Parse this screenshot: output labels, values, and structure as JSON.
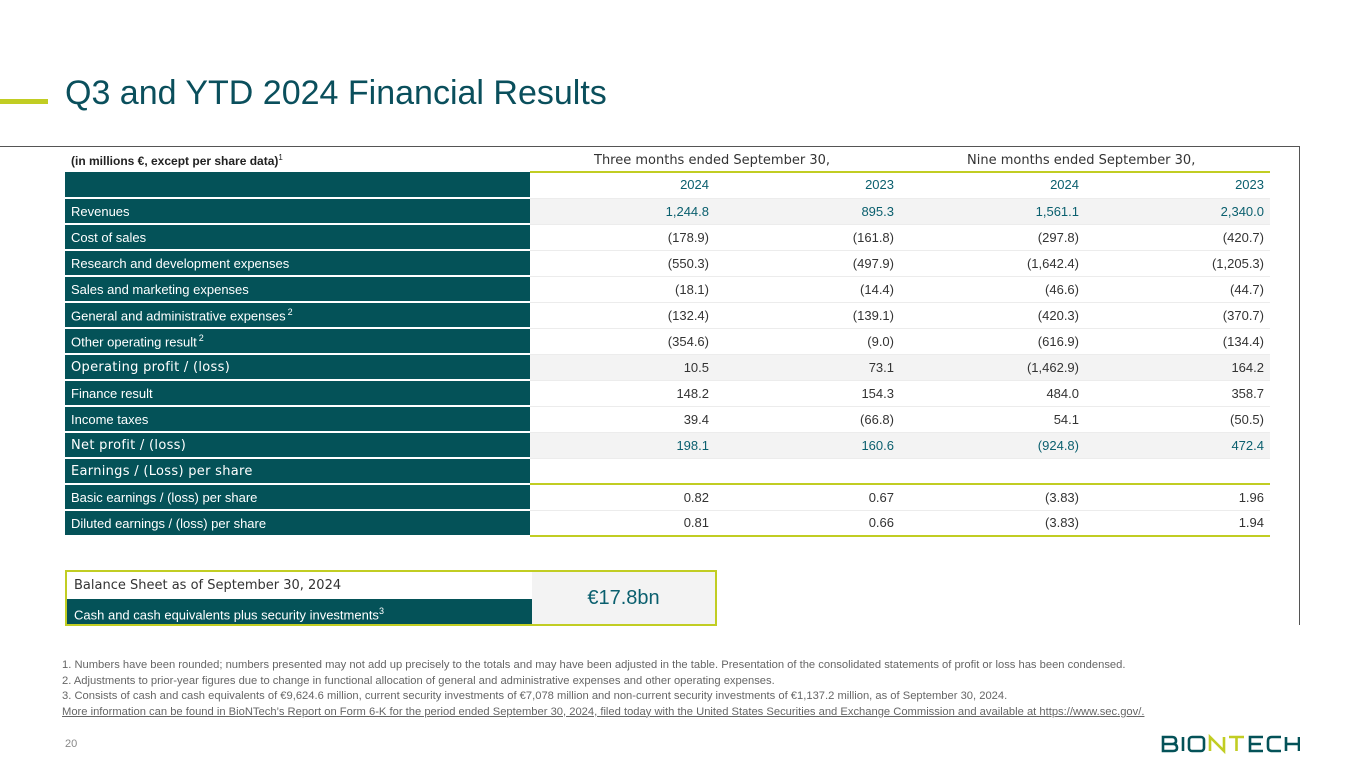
{
  "title": "Q3 and YTD 2024 Financial Results",
  "units_label": "(in millions €, except per share data)",
  "units_footnote": "1",
  "periods": {
    "three_months": "Three months ended September 30,",
    "nine_months": "Nine months ended September 30,"
  },
  "years": [
    "2024",
    "2023",
    "2024",
    "2023"
  ],
  "rows": [
    {
      "label": "Revenues",
      "sup": "",
      "values": [
        "1,244.8",
        "895.3",
        "1,561.1",
        "2,340.0"
      ]
    },
    {
      "label": "Cost of sales",
      "sup": "",
      "values": [
        "(178.9)",
        "(161.8)",
        "(297.8)",
        "(420.7)"
      ]
    },
    {
      "label": "Research and development expenses",
      "sup": "",
      "values": [
        "(550.3)",
        "(497.9)",
        "(1,642.4)",
        "(1,205.3)"
      ]
    },
    {
      "label": "Sales and marketing expenses",
      "sup": "",
      "values": [
        "(18.1)",
        "(14.4)",
        "(46.6)",
        "(44.7)"
      ]
    },
    {
      "label": "General and administrative expenses",
      "sup": "2",
      "values": [
        "(132.4)",
        "(139.1)",
        "(420.3)",
        "(370.7)"
      ]
    },
    {
      "label": "Other operating result",
      "sup": "2",
      "values": [
        "(354.6)",
        "(9.0)",
        "(616.9)",
        "(134.4)"
      ]
    },
    {
      "label": "Operating profit / (loss)",
      "sup": "",
      "values": [
        "10.5",
        "73.1",
        "(1,462.9)",
        "164.2"
      ]
    },
    {
      "label": "Finance result",
      "sup": "",
      "values": [
        "148.2",
        "154.3",
        "484.0",
        "358.7"
      ]
    },
    {
      "label": "Income taxes",
      "sup": "",
      "values": [
        "39.4",
        "(66.8)",
        "54.1",
        "(50.5)"
      ]
    },
    {
      "label": "Net profit / (loss)",
      "sup": "",
      "values": [
        "198.1",
        "160.6",
        "(924.8)",
        "472.4"
      ]
    },
    {
      "label": "Earnings / (Loss) per share",
      "sup": "",
      "values": [
        "",
        "",
        "",
        ""
      ]
    },
    {
      "label": "Basic earnings / (loss) per share",
      "sup": "",
      "values": [
        "0.82",
        "0.67",
        "(3.83)",
        "1.96"
      ]
    },
    {
      "label": "Diluted earnings / (loss) per share",
      "sup": "",
      "values": [
        "0.81",
        "0.66",
        "(3.83)",
        "1.94"
      ]
    }
  ],
  "balance_sheet": {
    "heading": "Balance Sheet as of September 30, 2024",
    "label": "Cash and cash equivalents plus security investments",
    "sup": "3",
    "value": "€17.8bn"
  },
  "footnotes": [
    "1. Numbers have been rounded; numbers presented may not add up precisely to the totals and may have been adjusted in the table. Presentation of the consolidated statements of profit or loss has been condensed.",
    "2. Adjustments to prior-year figures due to change in functional allocation of general and administrative expenses and other operating expenses.",
    "3. Consists of cash and cash equivalents of €9,624.6 million, current security investments of €7,078 million and non-current security investments of €1,137.2 million, as of September 30, 2024.",
    "More information can be found in BioNTech’s Report on Form 6-K for the period ended September 30, 2024, filed today with the United States Securities and Exchange Commission and available at https://www.sec.gov/."
  ],
  "page_number": "20",
  "logo_text": "BIONTECH",
  "colors": {
    "accent": "#c1cd23",
    "teal": "#045258",
    "title": "#0a4f5c"
  }
}
